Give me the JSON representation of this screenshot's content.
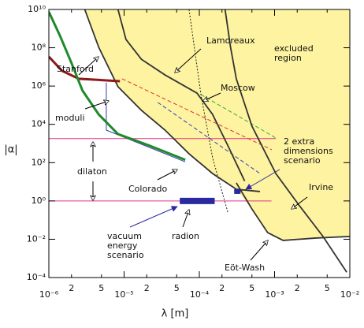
{
  "chart_data": {
    "type": "line",
    "x_label": "λ  [m]",
    "y_label": "|α|",
    "xlog": true,
    "ylog": true,
    "xlim": [
      1e-06,
      0.01
    ],
    "ylim": [
      0.0001,
      10000000000.0
    ],
    "xticks": [
      {
        "value": 1e-06,
        "label": "10⁻⁶"
      },
      {
        "value": 2e-06,
        "label": "2"
      },
      {
        "value": 5e-06,
        "label": "5"
      },
      {
        "value": 1e-05,
        "label": "10⁻⁵"
      },
      {
        "value": 2e-05,
        "label": "2"
      },
      {
        "value": 5e-05,
        "label": "5"
      },
      {
        "value": 0.0001,
        "label": "10⁻⁴"
      },
      {
        "value": 0.0002,
        "label": "2"
      },
      {
        "value": 0.0005,
        "label": "5"
      },
      {
        "value": 0.001,
        "label": "10⁻³"
      },
      {
        "value": 0.002,
        "label": "2"
      },
      {
        "value": 0.005,
        "label": "5"
      },
      {
        "value": 0.01,
        "label": "10⁻²"
      }
    ],
    "yticks": [
      {
        "value": 0.0001,
        "label": "10⁻⁴"
      },
      {
        "value": 0.01,
        "label": "10⁻²"
      },
      {
        "value": 1,
        "label": "10⁰"
      },
      {
        "value": 100,
        "label": "10²"
      },
      {
        "value": 10000,
        "label": "10⁴"
      },
      {
        "value": 1000000,
        "label": "10⁶"
      },
      {
        "value": 100000000,
        "label": "10⁸"
      },
      {
        "value": 10000000000,
        "label": "10¹⁰"
      }
    ],
    "excluded_region": {
      "color": "#fdf3a0",
      "x": [
        3e-06,
        4.6e-06,
        8.3e-06,
        1.7e-05,
        3.5e-05,
        7.3e-05,
        0.00015,
        0.00031,
        0.0005,
        0.00081,
        0.0013,
        0.0035,
        0.01,
        0.01
      ],
      "y": [
        10000000000.0,
        106000000.0,
        920000.0,
        54000.0,
        5000,
        290,
        27,
        4.1,
        0.38,
        0.022,
        0.0087,
        0.0115,
        0.014,
        10000000000.0
      ]
    },
    "series": [
      {
        "color": "#e8308a",
        "style": "line",
        "x": [
          1e-06,
          0.00104
        ],
        "y": [
          1800,
          1800
        ]
      },
      {
        "color": "#e8308a",
        "style": "line",
        "x": [
          1e-06,
          0.00091
        ],
        "y": [
          1,
          1
        ]
      },
      {
        "color": "#e03030",
        "style": "dashed",
        "x": [
          9.4e-06,
          0.00092
        ],
        "y": [
          2400000.0,
          470
        ]
      },
      {
        "color": "#30b030",
        "style": "dashed",
        "x": [
          0.000105,
          0.00104
        ],
        "y": [
          360000.0,
          1950
        ]
      },
      {
        "color": "#3040c0",
        "style": "dashed",
        "x": [
          2.8e-05,
          0.00064
        ],
        "y": [
          140000.0,
          27
        ]
      },
      {
        "color": "#3a3ab0",
        "style": "line",
        "x": [
          5.8e-06,
          5.8e-06,
          6.5e-05
        ],
        "y": [
          1500000.0,
          5000,
          110
        ]
      },
      {
        "name": "Lamoreaux",
        "color": "#333333",
        "style": "line",
        "x": [
          8.3e-06,
          1.06e-05,
          1.7e-05,
          3.5e-05,
          9.3e-05,
          0.00015,
          0.00024,
          0.0004
        ],
        "y": [
          10000000000.0,
          270000000.0,
          25000000.0,
          3800000.0,
          430000.0,
          33000.0,
          760,
          11
        ]
      },
      {
        "name": "Colorado",
        "color": "#333333",
        "style": "line",
        "x": [
          3e-06,
          4.6e-06,
          8.3e-06,
          1.7e-05,
          3.5e-05,
          7.3e-05,
          0.00015,
          0.00031,
          0.00064
        ],
        "y": [
          10000000000.0,
          106000000.0,
          920000.0,
          54000.0,
          5000,
          290,
          27,
          4.1,
          3.1
        ]
      },
      {
        "name": "Eöt-Wash",
        "color": "#333333",
        "style": "line",
        "x": [
          0.00031,
          0.0005,
          0.00081,
          0.0013,
          0.0035,
          0.01
        ],
        "y": [
          8.8,
          0.38,
          0.022,
          0.0087,
          0.0115,
          0.014
        ]
      },
      {
        "name": "Irvine",
        "color": "#333333",
        "style": "line",
        "x": [
          0.00022,
          0.00026,
          0.00031,
          0.0005,
          0.00104,
          0.0021,
          0.0044,
          0.0091
        ],
        "y": [
          10000000000.0,
          106000000.0,
          2400000.0,
          8100,
          27,
          0.62,
          0.014,
          0.00019
        ]
      },
      {
        "name": "Moscow",
        "color": "#222222",
        "style": "dotted",
        "x": [
          7.3e-05,
          0.000105,
          0.00015,
          0.00024
        ],
        "y": [
          10000000000.0,
          360000.0,
          180,
          0.24
        ]
      },
      {
        "name": "Stanford",
        "color": "#8b1a1a",
        "style": "thick",
        "x": [
          1e-06,
          1.5e-06,
          2.5e-06,
          8.8e-06
        ],
        "y": [
          34000000.0,
          6200000.0,
          2400000.0,
          1800000.0
        ]
      },
      {
        "name": "moduli",
        "color": "#1f8a2a",
        "style": "thick",
        "x": [
          1e-06,
          1.4e-06,
          2e-06,
          2.8e-06,
          4.6e-06,
          8.3e-06,
          2.2e-05,
          6.5e-05
        ],
        "y": [
          7500000000.0,
          440000000.0,
          16000000.0,
          580000.0,
          33000.0,
          3100,
          760,
          140
        ]
      },
      {
        "name": "radion",
        "color": "#2a2aa0",
        "style": "band",
        "x": [
          5.5e-05,
          0.00016
        ],
        "y": [
          1,
          1
        ]
      },
      {
        "name": "2 extra dimensions scenario",
        "color": "#2a2aa0",
        "style": "marker",
        "x": [
          0.00032
        ],
        "y": [
          3.1
        ]
      }
    ],
    "annotations": [
      {
        "text": [
          "excluded",
          "region"
        ]
      },
      {
        "text": [
          "dilaton"
        ]
      },
      {
        "text": [
          "vacuum",
          "energy",
          "scenario"
        ]
      }
    ]
  }
}
